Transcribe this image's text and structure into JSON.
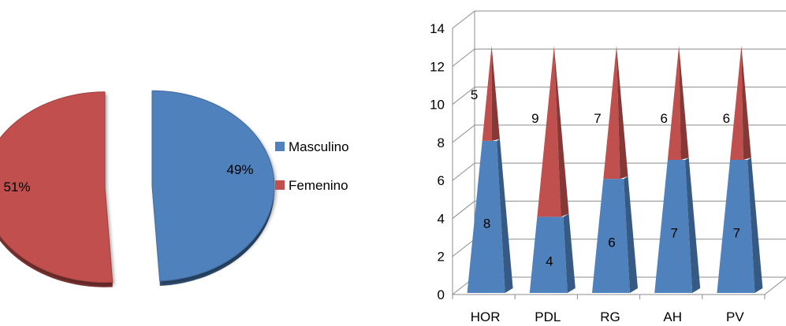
{
  "chart_data": [
    {
      "type": "pie",
      "slices": [
        {
          "name": "Masculino",
          "value": 49,
          "label": "49%",
          "color": "#4f81bd"
        },
        {
          "name": "Femenino",
          "value": 51,
          "label": "51%",
          "color": "#c0504d"
        }
      ],
      "legend": {
        "position": "right",
        "items": [
          "Masculino",
          "Femenino"
        ]
      }
    },
    {
      "type": "bar",
      "stacked": true,
      "shape": "3d-pyramid",
      "categories": [
        "HOR",
        "PDL",
        "RG",
        "AH",
        "PV"
      ],
      "series": [
        {
          "values": [
            8,
            4,
            6,
            7,
            7
          ],
          "color": "#4f81bd"
        },
        {
          "values": [
            5,
            9,
            7,
            6,
            6
          ],
          "color": "#c0504d"
        }
      ],
      "ylim": [
        0,
        14
      ],
      "yticks": [
        "0",
        "2",
        "4",
        "6",
        "8",
        "10",
        "12",
        "14"
      ],
      "grid": true
    }
  ]
}
